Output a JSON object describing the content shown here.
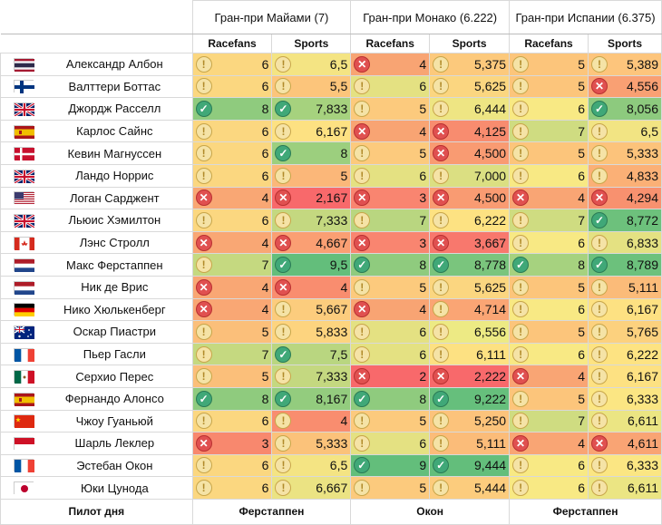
{
  "races": [
    {
      "title": "Гран-при Майами",
      "avg": "(7)"
    },
    {
      "title": "Гран-при Монако",
      "avg": "(6.222)"
    },
    {
      "title": "Гран-при Испании",
      "avg": "(6.375)"
    }
  ],
  "columns": {
    "racefans": "Racefans",
    "sports": "Sports"
  },
  "footer": {
    "label": "Пилот дня",
    "picks": [
      "Ферстаппен",
      "Окон",
      "Ферстаппен"
    ]
  },
  "status_colors": {
    "good": "#63be7b",
    "mid": "#ffeb84",
    "bad": "#f8696b"
  },
  "drivers": [
    {
      "name": "Александр Албон",
      "flag": "Thailand",
      "cells": [
        {
          "v": "6",
          "i": "warn",
          "c": "#fbd780"
        },
        {
          "v": "6,5",
          "i": "warn",
          "c": "#f4e483"
        },
        {
          "v": "4",
          "i": "cross",
          "c": "#f8a473"
        },
        {
          "v": "5,375",
          "i": "warn",
          "c": "#fcc97c"
        },
        {
          "v": "5",
          "i": "warn",
          "c": "#fcc57b"
        },
        {
          "v": "5,389",
          "i": "warn",
          "c": "#fdc57c"
        }
      ]
    },
    {
      "name": "Валттери Боттас",
      "flag": "Finland",
      "cells": [
        {
          "v": "6",
          "i": "warn",
          "c": "#fbd780"
        },
        {
          "v": "5,5",
          "i": "warn",
          "c": "#fcc57b"
        },
        {
          "v": "6",
          "i": "warn",
          "c": "#e4e182"
        },
        {
          "v": "5,625",
          "i": "warn",
          "c": "#fbd680"
        },
        {
          "v": "5",
          "i": "warn",
          "c": "#fcc57b"
        },
        {
          "v": "4,556",
          "i": "cross",
          "c": "#f9a073"
        }
      ]
    },
    {
      "name": "Джордж Расселл",
      "flag": "UK",
      "cells": [
        {
          "v": "8",
          "i": "check",
          "c": "#8fcb7e"
        },
        {
          "v": "7,833",
          "i": "check",
          "c": "#a6d27e"
        },
        {
          "v": "5",
          "i": "warn",
          "c": "#fcca7d"
        },
        {
          "v": "6,444",
          "i": "warn",
          "c": "#eee583"
        },
        {
          "v": "6",
          "i": "warn",
          "c": "#f8e984"
        },
        {
          "v": "8,056",
          "i": "check",
          "c": "#8dca7e"
        }
      ]
    },
    {
      "name": "Карлос Сайнс",
      "flag": "Spain",
      "cells": [
        {
          "v": "6",
          "i": "warn",
          "c": "#fbd780"
        },
        {
          "v": "6,167",
          "i": "warn",
          "c": "#fde182"
        },
        {
          "v": "4",
          "i": "cross",
          "c": "#f8a473"
        },
        {
          "v": "4,125",
          "i": "cross",
          "c": "#f88c6f"
        },
        {
          "v": "7",
          "i": "warn",
          "c": "#cfdc81"
        },
        {
          "v": "6,5",
          "i": "warn",
          "c": "#f2e483"
        }
      ]
    },
    {
      "name": "Кевин Магнуссен",
      "flag": "Denmark",
      "cells": [
        {
          "v": "6",
          "i": "warn",
          "c": "#fbd780"
        },
        {
          "v": "8",
          "i": "check",
          "c": "#9ccf7e"
        },
        {
          "v": "5",
          "i": "warn",
          "c": "#fcca7d"
        },
        {
          "v": "4,500",
          "i": "cross",
          "c": "#f99b72"
        },
        {
          "v": "5",
          "i": "warn",
          "c": "#fcc57b"
        },
        {
          "v": "5,333",
          "i": "warn",
          "c": "#fcc37b"
        }
      ]
    },
    {
      "name": "Ландо Норрис",
      "flag": "UK",
      "cells": [
        {
          "v": "6",
          "i": "warn",
          "c": "#fbd780"
        },
        {
          "v": "5",
          "i": "warn",
          "c": "#fbb779"
        },
        {
          "v": "6",
          "i": "warn",
          "c": "#e4e182"
        },
        {
          "v": "7,000",
          "i": "warn",
          "c": "#dbdf82"
        },
        {
          "v": "6",
          "i": "warn",
          "c": "#f8e984"
        },
        {
          "v": "4,833",
          "i": "warn",
          "c": "#fbb076"
        }
      ]
    },
    {
      "name": "Логан Сарджент",
      "flag": "USA",
      "cells": [
        {
          "v": "4",
          "i": "cross",
          "c": "#f9a774"
        },
        {
          "v": "2,167",
          "i": "cross",
          "c": "#f8696b"
        },
        {
          "v": "3",
          "i": "cross",
          "c": "#f98570"
        },
        {
          "v": "4,500",
          "i": "cross",
          "c": "#f99b72"
        },
        {
          "v": "4",
          "i": "cross",
          "c": "#f9a574"
        },
        {
          "v": "4,294",
          "i": "cross",
          "c": "#f8916f"
        }
      ]
    },
    {
      "name": "Льюис Хэмилтон",
      "flag": "UK",
      "cells": [
        {
          "v": "6",
          "i": "warn",
          "c": "#fbd780"
        },
        {
          "v": "7,333",
          "i": "warn",
          "c": "#c4d880"
        },
        {
          "v": "7",
          "i": "warn",
          "c": "#b9d680"
        },
        {
          "v": "6,222",
          "i": "warn",
          "c": "#fde282"
        },
        {
          "v": "7",
          "i": "warn",
          "c": "#cfdc81"
        },
        {
          "v": "8,772",
          "i": "check",
          "c": "#6dc17c"
        }
      ]
    },
    {
      "name": "Лэнс Стролл",
      "flag": "Canada",
      "cells": [
        {
          "v": "4",
          "i": "cross",
          "c": "#f9a774"
        },
        {
          "v": "4,667",
          "i": "cross",
          "c": "#fa9f73"
        },
        {
          "v": "3",
          "i": "cross",
          "c": "#f98570"
        },
        {
          "v": "3,667",
          "i": "cross",
          "c": "#f8786d"
        },
        {
          "v": "6",
          "i": "warn",
          "c": "#f8e984"
        },
        {
          "v": "6,833",
          "i": "warn",
          "c": "#e4e182"
        }
      ]
    },
    {
      "name": "Макс Ферстаппен",
      "flag": "Netherlands",
      "cells": [
        {
          "v": "7",
          "i": "warn",
          "c": "#c5d980"
        },
        {
          "v": "9,5",
          "i": "check",
          "c": "#63be7b"
        },
        {
          "v": "8",
          "i": "check",
          "c": "#8fcb7e"
        },
        {
          "v": "8,778",
          "i": "check",
          "c": "#7ac57d"
        },
        {
          "v": "8",
          "i": "check",
          "c": "#a6d27f"
        },
        {
          "v": "8,789",
          "i": "check",
          "c": "#6cc17c"
        }
      ]
    },
    {
      "name": "Ник де Врис",
      "flag": "Netherlands",
      "cells": [
        {
          "v": "4",
          "i": "cross",
          "c": "#f9a774"
        },
        {
          "v": "4",
          "i": "cross",
          "c": "#f98d6f"
        },
        {
          "v": "5",
          "i": "warn",
          "c": "#fcca7d"
        },
        {
          "v": "5,625",
          "i": "warn",
          "c": "#fbd680"
        },
        {
          "v": "5",
          "i": "warn",
          "c": "#fcc57b"
        },
        {
          "v": "5,111",
          "i": "warn",
          "c": "#fbbb79"
        }
      ]
    },
    {
      "name": "Нико Хюлькенберг",
      "flag": "Germany",
      "cells": [
        {
          "v": "4",
          "i": "cross",
          "c": "#f9a774"
        },
        {
          "v": "5,667",
          "i": "warn",
          "c": "#fccc7d"
        },
        {
          "v": "4",
          "i": "cross",
          "c": "#f8a473"
        },
        {
          "v": "4,714",
          "i": "warn",
          "c": "#faa574"
        },
        {
          "v": "6",
          "i": "warn",
          "c": "#f8e984"
        },
        {
          "v": "6,167",
          "i": "warn",
          "c": "#fde182"
        }
      ]
    },
    {
      "name": "Оскар Пиастри",
      "flag": "Australia",
      "cells": [
        {
          "v": "5",
          "i": "warn",
          "c": "#fbbf7a"
        },
        {
          "v": "5,833",
          "i": "warn",
          "c": "#fdd47f"
        },
        {
          "v": "6",
          "i": "warn",
          "c": "#e4e182"
        },
        {
          "v": "6,556",
          "i": "warn",
          "c": "#edea84"
        },
        {
          "v": "5",
          "i": "warn",
          "c": "#fcc57b"
        },
        {
          "v": "5,765",
          "i": "warn",
          "c": "#fcd17e"
        }
      ]
    },
    {
      "name": "Пьер Гасли",
      "flag": "France",
      "cells": [
        {
          "v": "7",
          "i": "warn",
          "c": "#c5d980"
        },
        {
          "v": "7,5",
          "i": "check",
          "c": "#b9d680"
        },
        {
          "v": "6",
          "i": "warn",
          "c": "#e4e182"
        },
        {
          "v": "6,111",
          "i": "warn",
          "c": "#fde182"
        },
        {
          "v": "6",
          "i": "warn",
          "c": "#f8e984"
        },
        {
          "v": "6,222",
          "i": "warn",
          "c": "#fde382"
        }
      ]
    },
    {
      "name": "Серхио Перес",
      "flag": "Mexico",
      "cells": [
        {
          "v": "5",
          "i": "warn",
          "c": "#fbbf7a"
        },
        {
          "v": "7,333",
          "i": "warn",
          "c": "#c4d880"
        },
        {
          "v": "2",
          "i": "cross",
          "c": "#f8696b"
        },
        {
          "v": "2,222",
          "i": "cross",
          "c": "#f8696b"
        },
        {
          "v": "4",
          "i": "cross",
          "c": "#f9a574"
        },
        {
          "v": "6,167",
          "i": "warn",
          "c": "#fde182"
        }
      ]
    },
    {
      "name": "Фернандо Алонсо",
      "flag": "Spain",
      "cells": [
        {
          "v": "8",
          "i": "check",
          "c": "#8fcb7e"
        },
        {
          "v": "8,167",
          "i": "check",
          "c": "#93cc7e"
        },
        {
          "v": "8",
          "i": "check",
          "c": "#8fcb7e"
        },
        {
          "v": "9,222",
          "i": "check",
          "c": "#66bf7c"
        },
        {
          "v": "5",
          "i": "warn",
          "c": "#fcc57b"
        },
        {
          "v": "6,333",
          "i": "warn",
          "c": "#fbe683"
        }
      ]
    },
    {
      "name": "Чжоу Гуаньюй",
      "flag": "China",
      "cells": [
        {
          "v": "6",
          "i": "warn",
          "c": "#fbd780"
        },
        {
          "v": "4",
          "i": "warn",
          "c": "#f98d6f"
        },
        {
          "v": "5",
          "i": "warn",
          "c": "#fcca7d"
        },
        {
          "v": "5,250",
          "i": "warn",
          "c": "#fcc37b"
        },
        {
          "v": "7",
          "i": "warn",
          "c": "#cfdc81"
        },
        {
          "v": "6,611",
          "i": "warn",
          "c": "#ebe583"
        }
      ]
    },
    {
      "name": "Шарль Леклер",
      "flag": "Monaco",
      "cells": [
        {
          "v": "3",
          "i": "cross",
          "c": "#f8886e"
        },
        {
          "v": "5,333",
          "i": "warn",
          "c": "#fbc27a"
        },
        {
          "v": "6",
          "i": "warn",
          "c": "#e4e182"
        },
        {
          "v": "5,111",
          "i": "warn",
          "c": "#fbbc79"
        },
        {
          "v": "4",
          "i": "cross",
          "c": "#f9a574"
        },
        {
          "v": "4,611",
          "i": "cross",
          "c": "#f9a474"
        }
      ]
    },
    {
      "name": "Эстебан Окон",
      "flag": "France",
      "cells": [
        {
          "v": "6",
          "i": "warn",
          "c": "#fbd780"
        },
        {
          "v": "6,5",
          "i": "warn",
          "c": "#f4e483"
        },
        {
          "v": "9",
          "i": "check",
          "c": "#63be7b"
        },
        {
          "v": "9,444",
          "i": "check",
          "c": "#63be7b"
        },
        {
          "v": "6",
          "i": "warn",
          "c": "#f8e984"
        },
        {
          "v": "6,333",
          "i": "warn",
          "c": "#fbe683"
        }
      ]
    },
    {
      "name": "Юки Цунода",
      "flag": "Japan",
      "cells": [
        {
          "v": "6",
          "i": "warn",
          "c": "#fbd780"
        },
        {
          "v": "6,667",
          "i": "warn",
          "c": "#ebe383"
        },
        {
          "v": "5",
          "i": "warn",
          "c": "#fcca7d"
        },
        {
          "v": "5,444",
          "i": "warn",
          "c": "#fccc7d"
        },
        {
          "v": "6",
          "i": "warn",
          "c": "#f8e984"
        },
        {
          "v": "6,611",
          "i": "warn",
          "c": "#ebe583"
        }
      ]
    }
  ]
}
